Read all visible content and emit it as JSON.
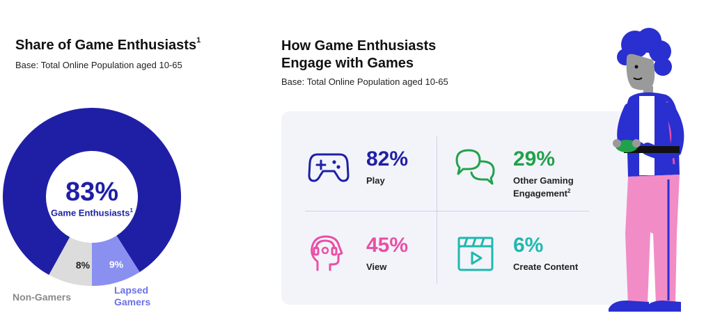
{
  "left": {
    "title": "Share of Game Enthusiasts",
    "title_sup": "1",
    "base": "Base: Total Online Population aged 10-65"
  },
  "right": {
    "title_line1": "How Game Enthusiasts",
    "title_line2": "Engage with Games",
    "base": "Base: Total Online Population aged 10-65"
  },
  "chart_data": [
    {
      "type": "pie",
      "title": "Share of Game Enthusiasts",
      "categories": [
        "Game Enthusiasts",
        "Lapsed Gamers",
        "Non-Gamers"
      ],
      "values": [
        83,
        9,
        8
      ],
      "unit": "%",
      "colors": [
        "#1f1fa6",
        "#8a90f0",
        "#dcdcdc"
      ],
      "display": {
        "center_pct": "83%",
        "center_label": "Game Enthusiasts",
        "center_label_sup": "1",
        "lapsed_pct": "9%",
        "nongamers_pct": "8%",
        "lapsed_label_line1": "Lapsed",
        "lapsed_label_line2": "Gamers",
        "nongamers_label": "Non-Gamers"
      }
    },
    {
      "type": "table",
      "title": "How Game Enthusiasts Engage with Games",
      "categories": [
        "Play",
        "Other Gaming Engagement",
        "View",
        "Create Content"
      ],
      "values": [
        82,
        29,
        45,
        6
      ],
      "unit": "%"
    }
  ],
  "stats": [
    {
      "pct": "82%",
      "label": "Play",
      "color": "#1f1fa6",
      "icon": "gamepad-icon"
    },
    {
      "pct": "29%",
      "label_line1": "Other Gaming",
      "label_line2": "Engagement",
      "label_sup": "2",
      "color": "#21a24a",
      "icon": "chat-bubbles-icon"
    },
    {
      "pct": "45%",
      "label": "View",
      "color": "#e94fa6",
      "icon": "head-headphones-icon"
    },
    {
      "pct": "6%",
      "label": "Create Content",
      "color": "#1fb8ae",
      "icon": "clapperboard-icon"
    }
  ],
  "illustration": {
    "icon": "gamer-person-illustration"
  }
}
